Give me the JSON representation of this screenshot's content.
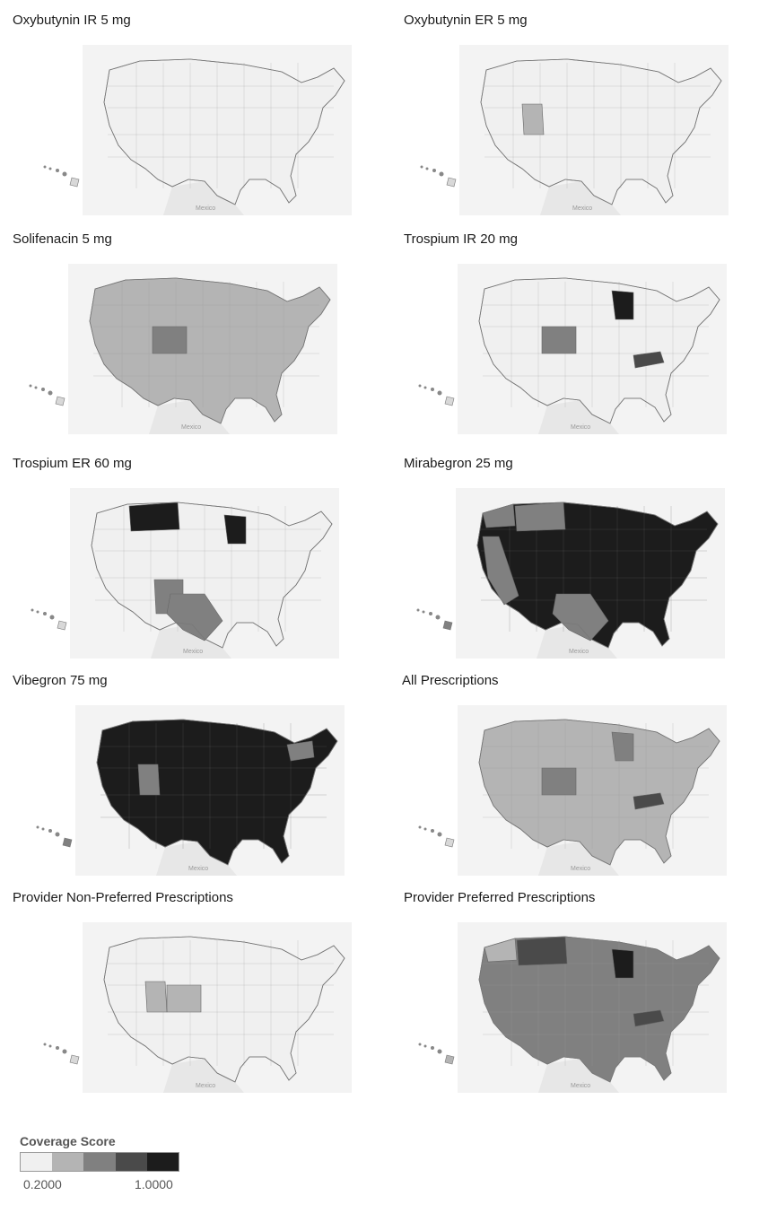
{
  "panels": [
    {
      "title": "Oxybutynin IR 5 mg",
      "tone": 0,
      "highlight": []
    },
    {
      "title": "Oxybutynin ER 5 mg",
      "tone": 0,
      "highlight": [
        {
          "region": "utah",
          "tone": 1
        }
      ]
    },
    {
      "title": "Solifenacin 5 mg",
      "tone": 1,
      "highlight": [
        {
          "region": "colorado",
          "tone": 2
        }
      ]
    },
    {
      "title": "Trospium IR 20 mg",
      "tone": 0,
      "highlight": [
        {
          "region": "wisconsin",
          "tone": 4
        },
        {
          "region": "colorado",
          "tone": 2
        },
        {
          "region": "kentucky",
          "tone": 3
        }
      ]
    },
    {
      "title": "Trospium ER 60 mg",
      "tone": 0,
      "highlight": [
        {
          "region": "montana",
          "tone": 4
        },
        {
          "region": "wisconsin",
          "tone": 4
        },
        {
          "region": "newmexico",
          "tone": 2
        },
        {
          "region": "texas",
          "tone": 2
        }
      ]
    },
    {
      "title": "Mirabegron 25 mg",
      "tone": 4,
      "highlight": [
        {
          "region": "washington",
          "tone": 2
        },
        {
          "region": "montana",
          "tone": 2
        },
        {
          "region": "texas",
          "tone": 2
        },
        {
          "region": "california",
          "tone": 2
        }
      ]
    },
    {
      "title": "Vibegron 75 mg",
      "tone": 4,
      "highlight": [
        {
          "region": "utah",
          "tone": 2
        },
        {
          "region": "newyork",
          "tone": 2
        }
      ]
    },
    {
      "title": "All Prescriptions",
      "tone": 1,
      "highlight": [
        {
          "region": "wisconsin",
          "tone": 2
        },
        {
          "region": "colorado",
          "tone": 2
        },
        {
          "region": "kentucky",
          "tone": 3
        }
      ]
    },
    {
      "title": "Provider Non-Preferred Prescriptions",
      "tone": 0,
      "highlight": [
        {
          "region": "colorado",
          "tone": 1
        },
        {
          "region": "utah",
          "tone": 1
        }
      ]
    },
    {
      "title": "Provider Preferred Prescriptions",
      "tone": 2,
      "highlight": [
        {
          "region": "wisconsin",
          "tone": 4
        },
        {
          "region": "montana",
          "tone": 3
        },
        {
          "region": "washington",
          "tone": 1
        },
        {
          "region": "kentucky",
          "tone": 3
        }
      ]
    }
  ],
  "map_labels": {
    "mexico": "Mexico"
  },
  "legend": {
    "title": "Coverage Score",
    "min_label": "0.2000",
    "max_label": "1.0000",
    "colors": [
      "#f0f0f0",
      "#b4b4b4",
      "#808080",
      "#4a4a4a",
      "#1c1c1c"
    ]
  }
}
